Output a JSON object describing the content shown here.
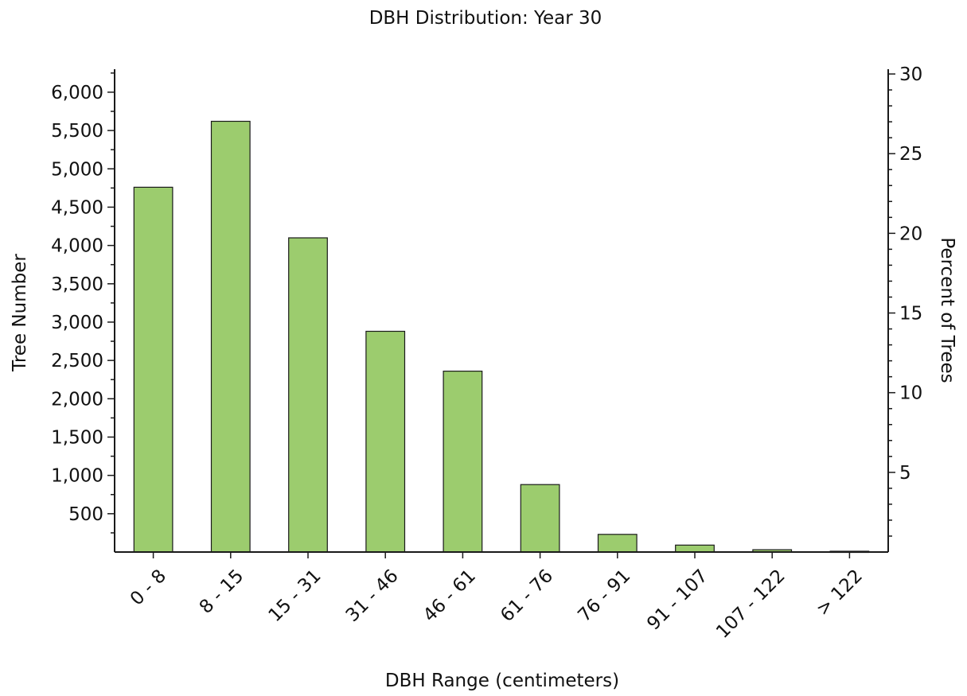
{
  "chart_data": {
    "type": "bar",
    "title": "DBH Distribution: Year 30",
    "xlabel": "DBH Range (centimeters)",
    "ylabel": "Tree Number",
    "y2label": "Percent of Trees",
    "categories": [
      "0 - 8",
      "8 - 15",
      "15 - 31",
      "31 - 46",
      "46 - 61",
      "61 - 76",
      "76 - 91",
      "91 - 107",
      "107 - 122",
      "> 122"
    ],
    "values": [
      4760,
      5620,
      4100,
      2880,
      2360,
      880,
      230,
      90,
      30,
      10
    ],
    "ylim": [
      0,
      6300
    ],
    "y_ticks": [
      500,
      1000,
      1500,
      2000,
      2500,
      3000,
      3500,
      4000,
      4500,
      5000,
      5500,
      6000
    ],
    "y_tick_labels": [
      "500",
      "1,000",
      "1,500",
      "2,000",
      "2,500",
      "3,000",
      "3,500",
      "4,000",
      "4,500",
      "5,000",
      "5,500",
      "6,000"
    ],
    "y2lim": [
      0,
      30.3
    ],
    "y2_ticks": [
      5,
      10,
      15,
      20,
      25,
      30
    ],
    "y2_tick_labels": [
      "5",
      "10",
      "15",
      "20",
      "25",
      "30"
    ],
    "grid": false,
    "legend": "none",
    "colors": {
      "bar_fill": "#9ccc6e",
      "bar_stroke": "#1a1a1a",
      "axis": "#1a1a1a"
    }
  }
}
